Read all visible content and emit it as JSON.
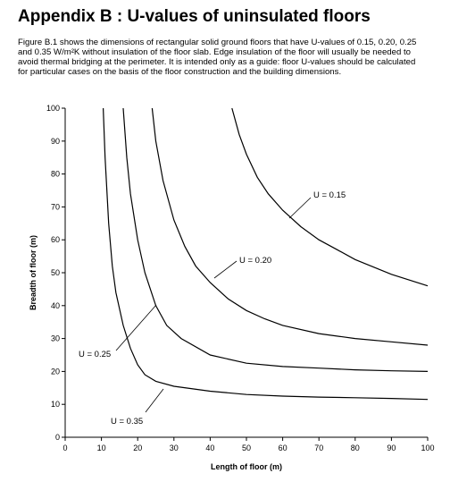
{
  "header": {
    "title": "Appendix B : U-values of uninsulated floors"
  },
  "paragraph": [
    "Figure B.1 shows the dimensions of rectangular solid ground floors that have U-values of 0.15, 0.20, 0.25",
    "and 0.35 W/m²K without insulation of the floor slab. Edge insulation of the floor will usually be needed to",
    "avoid thermal bridging at the perimeter. It is intended only as a guide: floor U-values should be calculated",
    "for particular cases on the basis of the floor construction and the building dimensions."
  ],
  "chart_data": {
    "type": "line",
    "xlabel": "Length of floor (m)",
    "ylabel": "Breadth of floor (m)",
    "xlim": [
      0,
      100
    ],
    "ylim": [
      0,
      100
    ],
    "xticks": [
      0,
      10,
      20,
      30,
      40,
      50,
      60,
      70,
      80,
      90,
      100
    ],
    "yticks": [
      0,
      10,
      20,
      30,
      40,
      50,
      60,
      70,
      80,
      90,
      100
    ],
    "series": [
      {
        "name": "U = 0.15",
        "color": "#000000",
        "x": [
          46,
          48,
          50,
          53,
          56,
          60,
          65,
          70,
          75,
          80,
          90,
          100
        ],
        "values": [
          100,
          92,
          86,
          79,
          74,
          69,
          64,
          60,
          57,
          54,
          49.5,
          46
        ]
      },
      {
        "name": "U = 0.20",
        "color": "#000000",
        "x": [
          24,
          25,
          27,
          30,
          33,
          36,
          40,
          45,
          50,
          55,
          60,
          70,
          80,
          90,
          100
        ],
        "values": [
          100,
          90,
          78,
          66,
          58,
          52,
          47,
          42,
          38.5,
          36,
          34,
          31.5,
          30,
          29,
          28
        ]
      },
      {
        "name": "U = 0.25",
        "color": "#000000",
        "x": [
          16,
          17,
          18,
          20,
          22,
          25,
          28,
          32,
          40,
          50,
          60,
          70,
          80,
          90,
          100
        ],
        "values": [
          100,
          85,
          74,
          60,
          50,
          40,
          34,
          30,
          25,
          22.5,
          21.5,
          21,
          20.5,
          20.2,
          20
        ]
      },
      {
        "name": "U = 0.35",
        "color": "#000000",
        "x": [
          10.5,
          11,
          12,
          13,
          14,
          16,
          18,
          20,
          22,
          25,
          30,
          40,
          50,
          60,
          70,
          80,
          90,
          100
        ],
        "values": [
          100,
          85,
          65,
          52,
          44,
          34,
          27,
          22,
          19,
          17,
          15.5,
          14,
          13,
          12.5,
          12.2,
          12,
          11.8,
          11.5
        ]
      }
    ]
  }
}
